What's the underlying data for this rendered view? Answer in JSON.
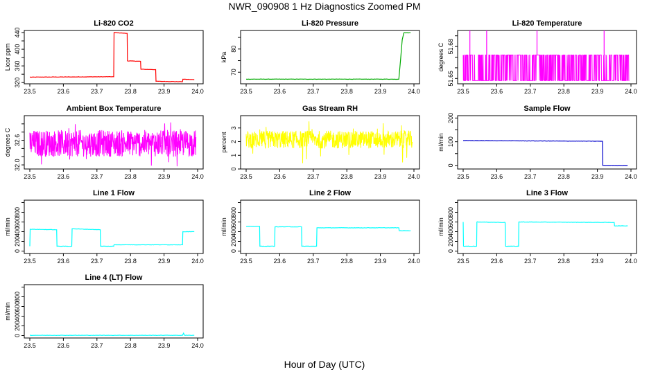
{
  "figure": {
    "title": "NWR_090908  1 Hz Diagnostics Zoomed PM",
    "xlabel": "Hour of Day (UTC)"
  },
  "chart_data": [
    {
      "type": "line",
      "title": "Li-820 CO2",
      "ylabel": "Licor ppm",
      "color": "#ff0000",
      "xlim": [
        23.5,
        24.0
      ],
      "xticks": [
        "23.5",
        "23.6",
        "23.7",
        "23.8",
        "23.9",
        "24.0"
      ],
      "ylim": [
        317,
        445
      ],
      "yticks": [
        320,
        340,
        360,
        380,
        400,
        420,
        440
      ],
      "ytick_labels": [
        "320",
        "",
        "360",
        "",
        "400",
        "",
        "440"
      ],
      "series": [
        {
          "points": [
            [
              23.5,
              333
            ],
            [
              23.75,
              334
            ],
            [
              23.751,
              440
            ],
            [
              23.79,
              438
            ],
            [
              23.791,
              372
            ],
            [
              23.83,
              371
            ],
            [
              23.831,
              352
            ],
            [
              23.875,
              351
            ],
            [
              23.876,
              323
            ],
            [
              23.955,
              322
            ],
            [
              23.956,
              328
            ],
            [
              23.99,
              327
            ]
          ]
        }
      ]
    },
    {
      "type": "line",
      "title": "Li-820 Pressure",
      "ylabel": "kPa",
      "color": "#00aa00",
      "xlim": [
        23.5,
        24.0
      ],
      "xticks": [
        "23.5",
        "23.6",
        "23.7",
        "23.8",
        "23.9",
        "24.0"
      ],
      "ylim": [
        65,
        88
      ],
      "yticks": [
        70,
        75,
        80,
        85
      ],
      "ytick_labels": [
        "70",
        "",
        "80",
        ""
      ],
      "series": [
        {
          "points": [
            [
              23.5,
              67.0
            ],
            [
              23.91,
              67.0
            ],
            [
              23.955,
              67.0
            ],
            [
              23.96,
              75
            ],
            [
              23.965,
              84
            ],
            [
              23.97,
              87
            ],
            [
              23.99,
              87
            ]
          ]
        }
      ]
    },
    {
      "type": "line",
      "title": "Li-820 Temperature",
      "ylabel": "degrees C",
      "color": "#ff00ff",
      "xlim": [
        23.5,
        24.0
      ],
      "xticks": [
        "23.5",
        "23.6",
        "23.7",
        "23.8",
        "23.9",
        "24.0"
      ],
      "ylim": [
        51.645,
        51.695
      ],
      "yticks": [
        51.65,
        51.66,
        51.67,
        51.68,
        51.69
      ],
      "ytick_labels": [
        "51.65",
        "",
        "",
        "51.68",
        ""
      ],
      "series": [
        {
          "levels": [
            51.648,
            51.672
          ],
          "spikes": [
            23.52,
            23.57,
            23.72,
            23.92
          ],
          "spike_value": 51.695
        }
      ]
    },
    {
      "type": "line",
      "title": "Ambient Box Temperature",
      "ylabel": "degrees C",
      "color": "#ff00ff",
      "xlim": [
        23.5,
        24.0
      ],
      "xticks": [
        "23.5",
        "23.6",
        "23.7",
        "23.8",
        "23.9",
        "24.0"
      ],
      "ylim": [
        31.9,
        33.2
      ],
      "yticks": [
        32.0,
        32.2,
        32.4,
        32.6,
        32.8,
        33.0
      ],
      "ytick_labels": [
        "32.0",
        "",
        "",
        "32.6",
        "",
        ""
      ],
      "series": [
        {
          "mean": 32.5,
          "band": [
            32.2,
            32.85
          ],
          "extremes": [
            31.95,
            33.1
          ]
        }
      ]
    },
    {
      "type": "line",
      "title": "Gas Stream RH",
      "ylabel": "percent",
      "color": "#ffff00",
      "xlim": [
        23.5,
        24.0
      ],
      "xticks": [
        "23.5",
        "23.6",
        "23.7",
        "23.8",
        "23.9",
        "24.0"
      ],
      "ylim": [
        0,
        3.9
      ],
      "yticks": [
        0,
        1,
        2,
        3
      ],
      "ytick_labels": [
        "0",
        "1",
        "2",
        "3"
      ],
      "series": [
        {
          "mean": 2.1,
          "band": [
            1.5,
            2.8
          ],
          "extremes": [
            0.1,
            3.6
          ]
        }
      ]
    },
    {
      "type": "line",
      "title": "Sample Flow",
      "ylabel": "ml/min",
      "color": "#0000cc",
      "xlim": [
        23.5,
        24.0
      ],
      "xticks": [
        "23.5",
        "23.6",
        "23.7",
        "23.8",
        "23.9",
        "24.0"
      ],
      "ylim": [
        -15,
        210
      ],
      "yticks": [
        0,
        50,
        100,
        150,
        200
      ],
      "ytick_labels": [
        "0",
        "",
        "100",
        "",
        "200"
      ],
      "series": [
        {
          "points": [
            [
              23.5,
              105
            ],
            [
              23.915,
              102
            ],
            [
              23.916,
              0
            ],
            [
              23.99,
              0
            ]
          ]
        }
      ]
    },
    {
      "type": "line",
      "title": "Line 1 Flow",
      "ylabel": "ml/min",
      "color": "#00ffff",
      "xlim": [
        23.5,
        24.0
      ],
      "xticks": [
        "23.5",
        "23.6",
        "23.7",
        "23.8",
        "23.9",
        "24.0"
      ],
      "ylim": [
        -50,
        1050
      ],
      "yticks": [
        0,
        200,
        400,
        600,
        800,
        1000
      ],
      "ytick_labels": [
        "0",
        "200",
        "400",
        "600",
        "800",
        ""
      ],
      "series": [
        {
          "points": [
            [
              23.5,
              100
            ],
            [
              23.501,
              450
            ],
            [
              23.58,
              440
            ],
            [
              23.581,
              100
            ],
            [
              23.625,
              100
            ],
            [
              23.626,
              460
            ],
            [
              23.71,
              440
            ],
            [
              23.711,
              100
            ],
            [
              23.75,
              100
            ],
            [
              23.751,
              130
            ],
            [
              23.955,
              130
            ],
            [
              23.956,
              400
            ],
            [
              23.99,
              400
            ]
          ]
        }
      ]
    },
    {
      "type": "line",
      "title": "Line 2 Flow",
      "ylabel": "ml/min",
      "color": "#00ffff",
      "xlim": [
        23.5,
        24.0
      ],
      "xticks": [
        "23.5",
        "23.6",
        "23.7",
        "23.8",
        "23.9",
        "24.0"
      ],
      "ylim": [
        -50,
        1050
      ],
      "yticks": [
        0,
        200,
        400,
        600,
        800,
        1000
      ],
      "ytick_labels": [
        "0",
        "200",
        "400",
        "600",
        "800",
        ""
      ],
      "series": [
        {
          "points": [
            [
              23.5,
              510
            ],
            [
              23.54,
              510
            ],
            [
              23.541,
              100
            ],
            [
              23.585,
              100
            ],
            [
              23.586,
              500
            ],
            [
              23.665,
              500
            ],
            [
              23.666,
              100
            ],
            [
              23.71,
              100
            ],
            [
              23.711,
              480
            ],
            [
              23.955,
              480
            ],
            [
              23.956,
              420
            ],
            [
              23.99,
              420
            ]
          ]
        }
      ]
    },
    {
      "type": "line",
      "title": "Line 3 Flow",
      "ylabel": "ml/min",
      "color": "#00ffff",
      "xlim": [
        23.5,
        24.0
      ],
      "xticks": [
        "23.5",
        "23.6",
        "23.7",
        "23.8",
        "23.9",
        "24.0"
      ],
      "ylim": [
        -50,
        1050
      ],
      "yticks": [
        0,
        200,
        400,
        600,
        800,
        1000
      ],
      "ytick_labels": [
        "0",
        "200",
        "400",
        "600",
        "800",
        ""
      ],
      "series": [
        {
          "points": [
            [
              23.5,
              600
            ],
            [
              23.501,
              100
            ],
            [
              23.54,
              100
            ],
            [
              23.541,
              600
            ],
            [
              23.625,
              590
            ],
            [
              23.626,
              100
            ],
            [
              23.665,
              100
            ],
            [
              23.666,
              600
            ],
            [
              23.95,
              590
            ],
            [
              23.951,
              520
            ],
            [
              23.99,
              520
            ]
          ]
        }
      ]
    },
    {
      "type": "line",
      "title": "Line 4 (LT) Flow",
      "ylabel": "ml/min",
      "color": "#00ffff",
      "xlim": [
        23.5,
        24.0
      ],
      "xticks": [
        "23.5",
        "23.6",
        "23.7",
        "23.8",
        "23.9",
        "24.0"
      ],
      "ylim": [
        -50,
        1050
      ],
      "yticks": [
        0,
        200,
        400,
        600,
        800,
        1000
      ],
      "ytick_labels": [
        "0",
        "200",
        "400",
        "600",
        "800",
        ""
      ],
      "series": [
        {
          "points": [
            [
              23.5,
              5
            ],
            [
              23.955,
              5
            ],
            [
              23.958,
              50
            ],
            [
              23.961,
              5
            ],
            [
              23.99,
              5
            ]
          ]
        }
      ]
    }
  ]
}
